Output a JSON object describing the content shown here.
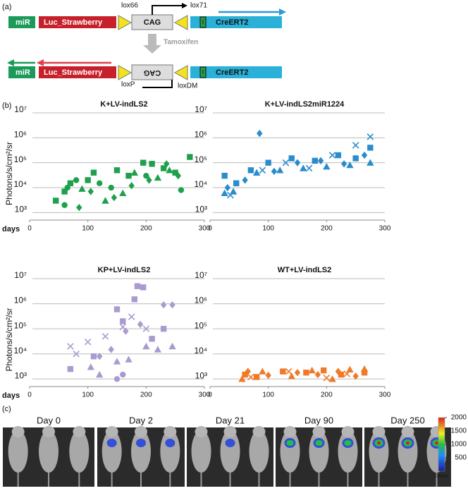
{
  "panel_labels": [
    "(a)",
    "(b)",
    "(c)"
  ],
  "diagram": {
    "top": {
      "elements": [
        "miR",
        "Luc_Strawberry",
        "CAG",
        "CreERT2"
      ],
      "sites": [
        "lox66",
        "lox71"
      ]
    },
    "treatment": "Tamoxifen",
    "bottom": {
      "elements": [
        "miR",
        "Luc_Strawberry",
        "CAG",
        "CreERT2"
      ],
      "sites": [
        "loxP",
        "loxDM"
      ]
    },
    "marker_text": "I"
  },
  "x_axis_word": "days",
  "chart_data": [
    {
      "type": "scatter",
      "title": "K+LV-indLS2",
      "ylabel": "Photons/s/cm²/sr",
      "color": "#1fa04c",
      "log": true,
      "grid": true,
      "xlim": [
        0,
        300
      ],
      "xticks": [
        0,
        100,
        200,
        300
      ],
      "ylim": [
        500,
        10000000
      ],
      "yticks": [
        {
          "value": 1000,
          "label": "10³"
        },
        {
          "value": 10000,
          "label": "10⁴"
        },
        {
          "value": 100000,
          "label": "10⁵"
        },
        {
          "value": 1000000,
          "label": "10⁶"
        },
        {
          "value": 10000000,
          "label": "10⁷"
        }
      ],
      "series": [
        {
          "marker": "square",
          "x": [
            45,
            60,
            70,
            100,
            110,
            150,
            170,
            195,
            210,
            230,
            250,
            275
          ],
          "values": [
            3000,
            7000,
            15000,
            20000,
            40000,
            50000,
            30000,
            100000,
            90000,
            60000,
            40000,
            170000
          ]
        },
        {
          "marker": "circle",
          "x": [
            60,
            65,
            80,
            120,
            140,
            200,
            260
          ],
          "values": [
            2000,
            10000,
            20000,
            15000,
            10000,
            30000,
            8000
          ]
        },
        {
          "marker": "triangle",
          "x": [
            90,
            130,
            160,
            180,
            220,
            240
          ],
          "values": [
            9000,
            3000,
            6000,
            40000,
            25000,
            50000
          ]
        },
        {
          "marker": "diamond",
          "x": [
            85,
            105,
            145,
            175,
            205,
            235,
            255
          ],
          "values": [
            1600,
            7000,
            4000,
            12000,
            20000,
            90000,
            30000
          ]
        }
      ]
    },
    {
      "type": "scatter",
      "title": "K+LV-indLS2miR1224",
      "color": "#2b8ccc",
      "log": true,
      "grid": true,
      "xlim": [
        0,
        300
      ],
      "xticks": [
        0,
        100,
        200,
        300
      ],
      "ylim": [
        500,
        10000000
      ],
      "yticks": [
        {
          "value": 1000,
          "label": "10³"
        },
        {
          "value": 10000,
          "label": "10⁴"
        },
        {
          "value": 100000,
          "label": "10⁵"
        },
        {
          "value": 1000000,
          "label": "10⁶"
        },
        {
          "value": 10000000,
          "label": "10⁷"
        }
      ],
      "series": [
        {
          "marker": "square",
          "x": [
            25,
            45,
            70,
            100,
            140,
            180,
            220,
            250,
            275
          ],
          "values": [
            30000,
            15000,
            50000,
            100000,
            150000,
            120000,
            200000,
            150000,
            400000
          ]
        },
        {
          "marker": "triangle",
          "x": [
            25,
            40,
            80,
            120,
            160,
            200,
            240,
            275
          ],
          "values": [
            6000,
            7000,
            40000,
            50000,
            60000,
            70000,
            80000,
            100000
          ]
        },
        {
          "marker": "diamond",
          "x": [
            30,
            60,
            85,
            110,
            150,
            190,
            230,
            265
          ],
          "values": [
            10000,
            20000,
            1500000,
            45000,
            100000,
            120000,
            90000,
            200000
          ]
        },
        {
          "marker": "cross",
          "x": [
            35,
            90,
            130,
            170,
            210,
            250,
            275
          ],
          "values": [
            5000,
            50000,
            100000,
            60000,
            200000,
            500000,
            1100000
          ]
        }
      ]
    },
    {
      "type": "scatter",
      "title": "KP+LV-indLS2",
      "ylabel": "Photons/s/cm²/sr",
      "color": "#a99bd0",
      "log": true,
      "grid": true,
      "xlim": [
        0,
        300
      ],
      "xticks": [
        0,
        100,
        200,
        300
      ],
      "ylim": [
        500,
        10000000
      ],
      "yticks": [
        {
          "value": 1000,
          "label": "10³"
        },
        {
          "value": 10000,
          "label": "10⁴"
        },
        {
          "value": 100000,
          "label": "10⁵"
        },
        {
          "value": 1000000,
          "label": "10⁶"
        },
        {
          "value": 10000000,
          "label": "10⁷"
        }
      ],
      "series": [
        {
          "marker": "square",
          "x": [
            70,
            110,
            150,
            160,
            180,
            185,
            195,
            210,
            230
          ],
          "values": [
            2500,
            8000,
            600000,
            200000,
            1500000,
            5000000,
            4500000,
            40000,
            100000
          ]
        },
        {
          "marker": "triangle",
          "x": [
            105,
            120,
            150,
            170,
            200,
            220,
            245
          ],
          "values": [
            3000,
            1500,
            5000,
            6000,
            20000,
            15000,
            20000
          ]
        },
        {
          "marker": "diamond",
          "x": [
            120,
            140,
            165,
            190,
            230,
            245
          ],
          "values": [
            8000,
            15000,
            80000,
            150000,
            900000,
            900000
          ]
        },
        {
          "marker": "cross",
          "x": [
            70,
            80,
            100,
            130,
            160,
            175,
            200
          ],
          "values": [
            20000,
            10000,
            30000,
            50000,
            120000,
            300000,
            100000
          ]
        },
        {
          "marker": "circle",
          "x": [
            150,
            160
          ],
          "values": [
            1000,
            1500
          ]
        }
      ]
    },
    {
      "type": "scatter",
      "title": "WT+LV-indLS2",
      "color": "#f07a2a",
      "log": true,
      "grid": true,
      "xlim": [
        0,
        300
      ],
      "xticks": [
        0,
        100,
        200,
        300
      ],
      "ylim": [
        500,
        10000000
      ],
      "yticks": [
        {
          "value": 1000,
          "label": "10³"
        },
        {
          "value": 10000,
          "label": "10⁴"
        },
        {
          "value": 100000,
          "label": "10⁵"
        },
        {
          "value": 1000000,
          "label": "10⁶"
        },
        {
          "value": 10000000,
          "label": "10⁷"
        }
      ],
      "series": [
        {
          "marker": "square",
          "x": [
            60,
            80,
            125,
            165,
            195,
            225,
            265
          ],
          "values": [
            1500,
            1200,
            2000,
            1800,
            2200,
            1500,
            1800
          ]
        },
        {
          "marker": "triangle",
          "x": [
            55,
            90,
            140,
            175,
            210,
            240,
            265
          ],
          "values": [
            1000,
            2000,
            1300,
            2200,
            1000,
            2400,
            2500
          ]
        },
        {
          "marker": "diamond",
          "x": [
            65,
            100,
            150,
            185,
            220,
            250
          ],
          "values": [
            2000,
            1400,
            1800,
            1500,
            2000,
            1300
          ]
        },
        {
          "marker": "cross",
          "x": [
            70,
            135,
            200,
            235
          ],
          "values": [
            1200,
            2000,
            1100,
            1600
          ]
        }
      ]
    }
  ],
  "imaging": {
    "days": [
      "Day 0",
      "Day 2",
      "Day 21",
      "Day 90",
      "Day 250"
    ],
    "colorbar": {
      "lim": [
        0,
        2000
      ],
      "ticks": [
        500,
        1000,
        1500,
        2000
      ],
      "label": "Counts"
    }
  }
}
